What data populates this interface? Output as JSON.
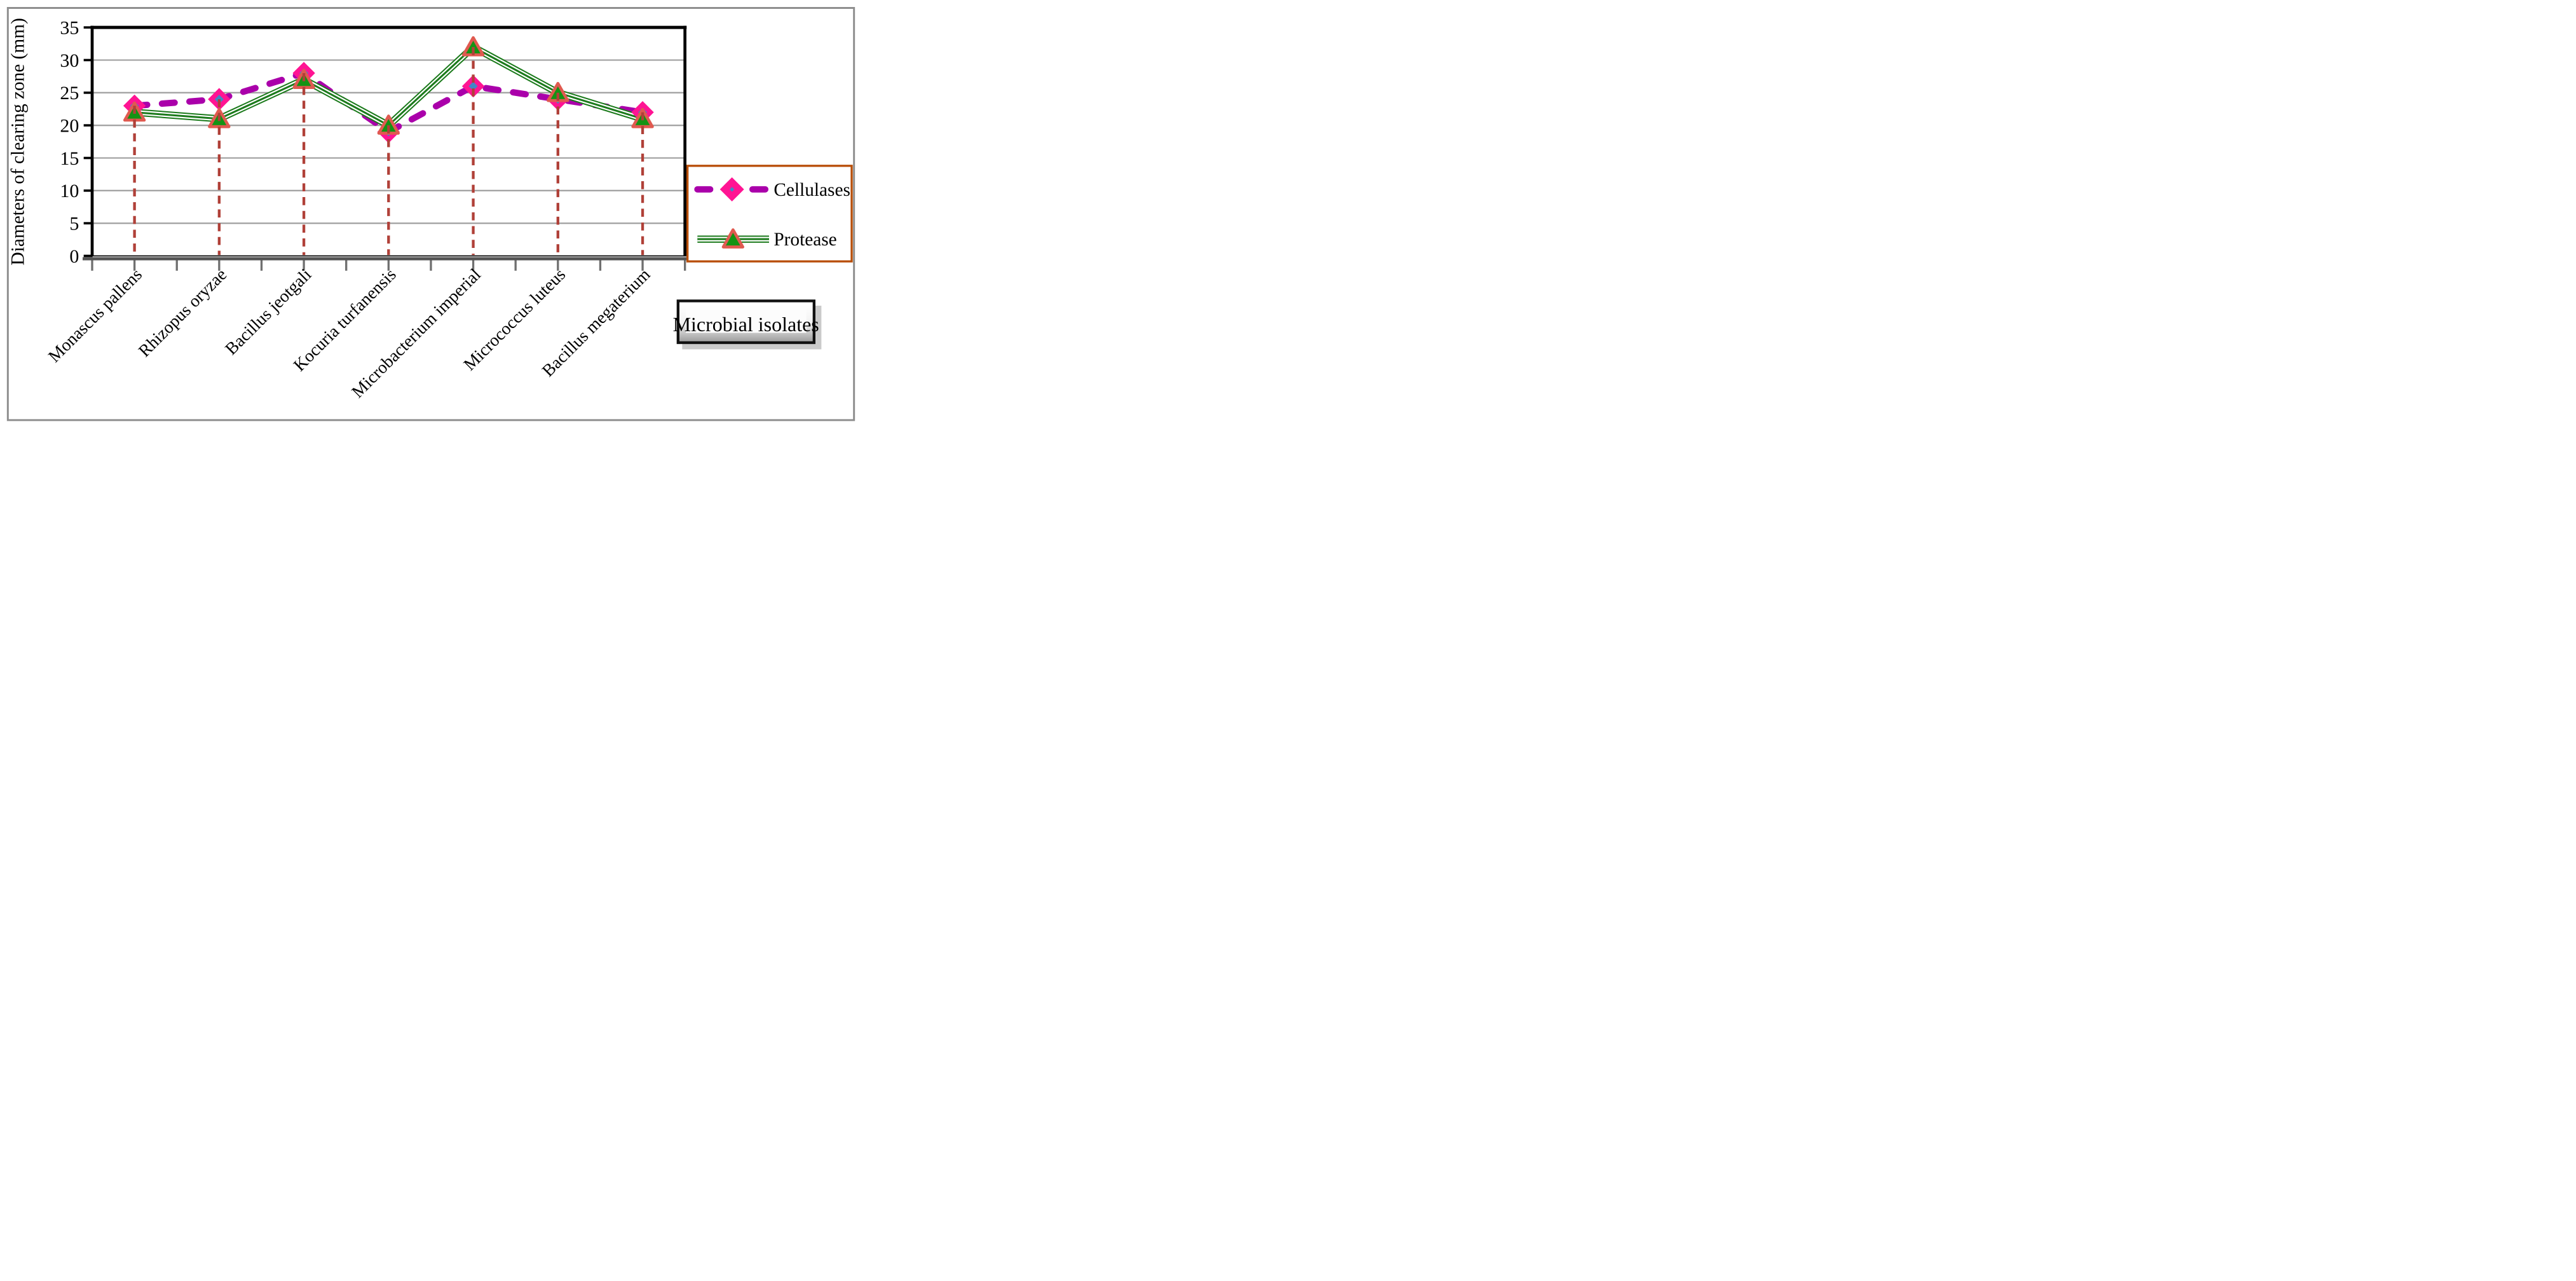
{
  "figure": {
    "background": "#FFFFFF",
    "border_color": "#8F8F8F"
  },
  "chart_data": {
    "type": "line",
    "title": "",
    "categories": [
      "Monascus pallens",
      "Rhizopus oryzae",
      "Bacillus jeotgali",
      "Kocuria turfanensis",
      "Microbacterium imperial",
      "Micrococcus luteus",
      "Bacillus megaterium"
    ],
    "series": [
      {
        "name": "Cellulases",
        "values": [
          23,
          24,
          28,
          19,
          26,
          24,
          22
        ],
        "line_color": "#AA00AA",
        "line_style": "thick-dashed",
        "marker": "diamond",
        "marker_fill": "#FF1493",
        "marker_inner_fill": "#4186C6"
      },
      {
        "name": "Protease",
        "values": [
          22,
          21,
          27,
          20,
          32,
          25,
          21
        ],
        "line_color": "#1B7A1B",
        "line_style": "triple-line",
        "marker": "triangle",
        "marker_fill": "#149314",
        "marker_stroke": "#E05A50"
      }
    ],
    "ylabel": "Diameters of clearing zone (mm)",
    "xlabel": "Microbial isolates",
    "ylim": [
      0,
      35
    ],
    "ytick_step": 5,
    "ytick_labels": [
      "0",
      "5",
      "10",
      "15",
      "20",
      "25",
      "30",
      "35"
    ],
    "grid": true,
    "gridline_color": "#A3A3A3",
    "axis_color": "#000000",
    "axis_shadow_color": "#545454",
    "xtick_color": "#707070",
    "drop_lines": true,
    "drop_line_color": "#B04038",
    "legend_position": "right",
    "legend_border_color": "#B84E08"
  }
}
